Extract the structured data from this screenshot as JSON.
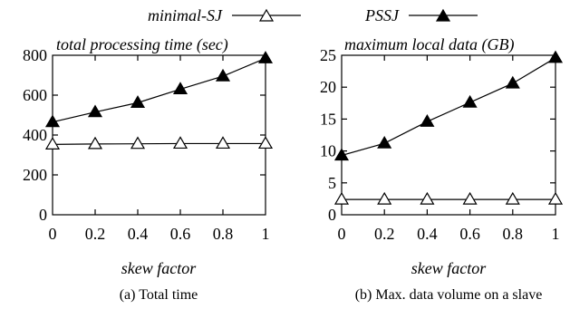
{
  "legend": {
    "entries": [
      {
        "label": "minimal-SJ",
        "marker": "triangle-open"
      },
      {
        "label": "PSSJ",
        "marker": "triangle-filled"
      }
    ]
  },
  "chart_data": [
    {
      "type": "line",
      "title": "total processing time (sec)",
      "xlabel": "skew factor",
      "ylabel": "",
      "caption": "(a) Total time",
      "x": [
        0,
        0.2,
        0.4,
        0.6,
        0.8,
        1
      ],
      "xticks": [
        "0",
        "0.2",
        "0.4",
        "0.6",
        "0.8",
        "1"
      ],
      "xlim": [
        0,
        1
      ],
      "ylim": [
        0,
        800
      ],
      "yticks": [
        0,
        200,
        400,
        600,
        800
      ],
      "yticklabels": [
        "0",
        "200",
        "400",
        "600",
        "800"
      ],
      "grid": false,
      "legend_position": "top",
      "series": [
        {
          "name": "minimal-SJ",
          "marker": "triangle-open",
          "values": [
            353,
            355,
            356,
            357,
            357,
            357
          ]
        },
        {
          "name": "PSSJ",
          "marker": "triangle-filled",
          "values": [
            465,
            515,
            562,
            630,
            695,
            785
          ]
        }
      ]
    },
    {
      "type": "line",
      "title": "maximum local data (GB)",
      "xlabel": "skew factor",
      "ylabel": "",
      "caption": "(b) Max. data volume on a slave",
      "x": [
        0,
        0.2,
        0.4,
        0.6,
        0.8,
        1
      ],
      "xticks": [
        "0",
        "0.2",
        "0.4",
        "0.6",
        "0.8",
        "1"
      ],
      "xlim": [
        0,
        1
      ],
      "ylim": [
        0,
        25
      ],
      "yticks": [
        0,
        5,
        10,
        15,
        20,
        25
      ],
      "yticklabels": [
        "0",
        "5",
        "10",
        "15",
        "20",
        "25"
      ],
      "grid": false,
      "legend_position": "top",
      "series": [
        {
          "name": "minimal-SJ",
          "marker": "triangle-open",
          "values": [
            2.4,
            2.4,
            2.4,
            2.4,
            2.4,
            2.4
          ]
        },
        {
          "name": "PSSJ",
          "marker": "triangle-filled",
          "values": [
            9.3,
            11.2,
            14.6,
            17.6,
            20.6,
            24.6
          ]
        }
      ]
    }
  ]
}
